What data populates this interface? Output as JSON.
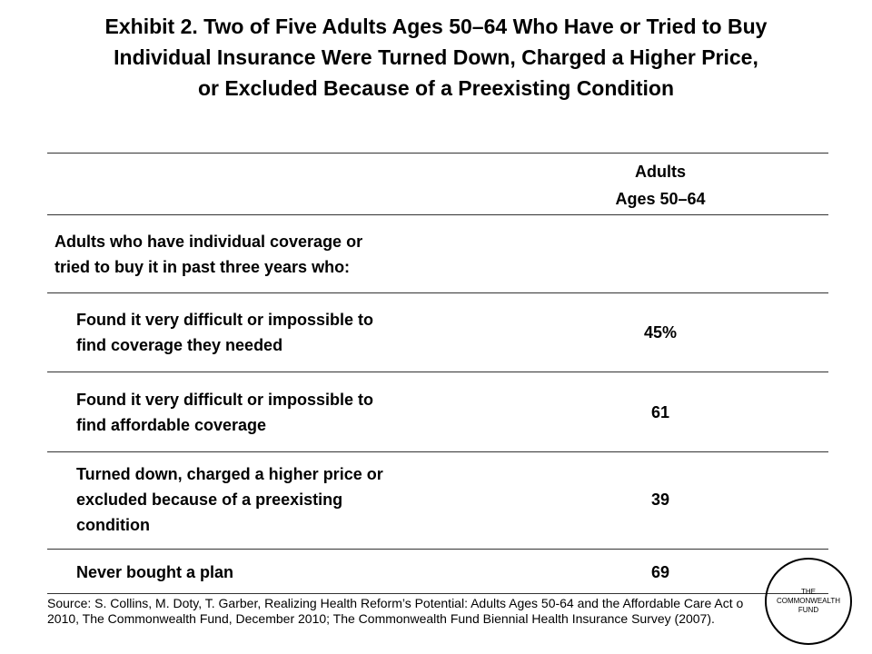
{
  "title": {
    "line1": "Exhibit 2. Two of Five Adults Ages 50–64 Who Have or Tried to Buy",
    "line2": "Individual Insurance Were Turned Down, Charged a Higher Price,",
    "line3": "or Excluded Because of a Preexisting Condition"
  },
  "table": {
    "column_header": {
      "line1": "Adults",
      "line2": "Ages 50–64"
    },
    "section_label": {
      "line1": "Adults who have individual coverage or",
      "line2": "tried to buy it in past three years who:"
    },
    "rows": [
      {
        "lines": [
          "Found it very difficult or impossible to",
          "find coverage they needed"
        ],
        "value": "45%"
      },
      {
        "lines": [
          "Found it very difficult or impossible to",
          "find affordable coverage"
        ],
        "value": "61"
      },
      {
        "lines": [
          "Turned down, charged a higher price or",
          "excluded  because of a preexisting",
          "condition"
        ],
        "value": "39"
      },
      {
        "lines": [
          "Never bought a plan"
        ],
        "value": "69"
      }
    ]
  },
  "footer": {
    "source": "Source: S. Collins, M. Doty, T. Garber, Realizing Health Reform’s Potential: Adults Ages 50-64 and the Affordable Care Act o 2010, The Commonwealth Fund, December 2010; The Commonwealth Fund Biennial Health Insurance Survey (2007)."
  },
  "logo": {
    "line1": "THE",
    "line2": "COMMONWEALTH",
    "line3": "FUND"
  }
}
